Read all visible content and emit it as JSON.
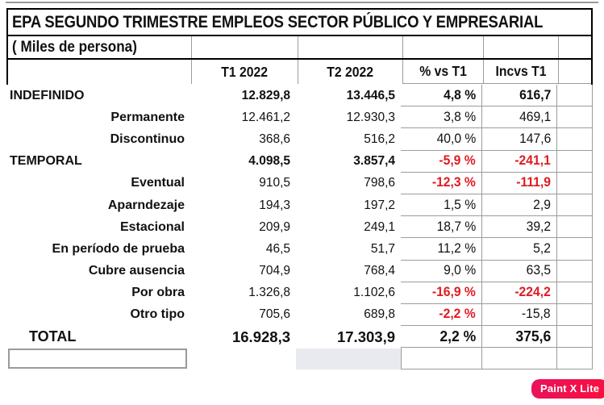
{
  "header": {
    "title": "EPA SEGUNDO TRIMESTRE EMPLEOS SECTOR PÚBLICO Y EMPRESARIAL",
    "subtitle": "( Miles de persona)",
    "columns": [
      "T1 2022",
      "T2 2022",
      "% vs T1",
      "Incvs T1"
    ]
  },
  "table": {
    "rows": [
      {
        "label": "INDEFINIDO",
        "t1": "12.829,8",
        "t2": "13.446,5",
        "pct": "4,8 %",
        "inc": "616,7"
      },
      {
        "label": "Permanente",
        "t1": "12.461,2",
        "t2": "12.930,3",
        "pct": "3,8 %",
        "inc": "469,1"
      },
      {
        "label": "Discontinuo",
        "t1": "368,6",
        "t2": "516,2",
        "pct": "40,0 %",
        "inc": "147,6"
      },
      {
        "label": "TEMPORAL",
        "t1": "4.098,5",
        "t2": "3.857,4",
        "pct": "-5,9 %",
        "inc": "-241,1"
      },
      {
        "label": "Eventual",
        "t1": "910,5",
        "t2": "798,6",
        "pct": "-12,3 %",
        "inc": "-111,9"
      },
      {
        "label": "Aparndezaje",
        "t1": "194,3",
        "t2": "197,2",
        "pct": "1,5 %",
        "inc": "2,9"
      },
      {
        "label": "Estacional",
        "t1": "209,9",
        "t2": "249,1",
        "pct": "18,7 %",
        "inc": "39,2"
      },
      {
        "label": "En período de prueba",
        "t1": "46,5",
        "t2": "51,7",
        "pct": "11,2 %",
        "inc": "5,2"
      },
      {
        "label": "Cubre ausencia",
        "t1": "704,9",
        "t2": "768,4",
        "pct": "9,0 %",
        "inc": "63,5"
      },
      {
        "label": "Por obra",
        "t1": "1.326,8",
        "t2": "1.102,6",
        "pct": "-16,9 %",
        "inc": "-224,2"
      },
      {
        "label": "Otro tipo",
        "t1": "705,6",
        "t2": "689,8",
        "pct": "-2,2 %",
        "inc": "-15,8"
      },
      {
        "label": "TOTAL",
        "t1": "16.928,3",
        "t2": "17.303,9",
        "pct": "2,2 %",
        "inc": "375,6"
      }
    ]
  },
  "watermark": {
    "label": "Paint X Lite"
  },
  "colors": {
    "negative_value_red": "#e01b22",
    "grid_line_gray": "#9c9c9c",
    "selected_cell_shade": "#e9e9f0",
    "badge_gradient_left": "#e8125c",
    "badge_gradient_right": "#fa0f3e"
  }
}
